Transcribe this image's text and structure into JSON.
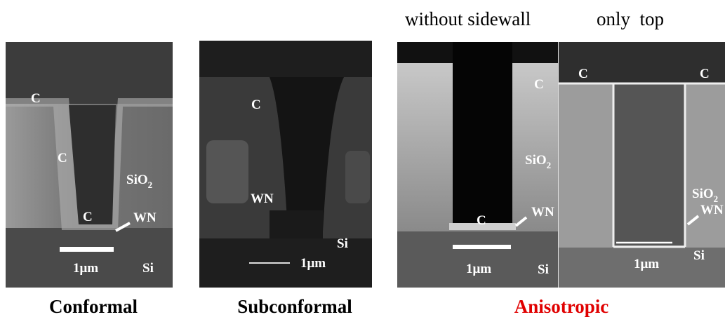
{
  "header": {
    "left_label": "without sidewall",
    "right_label": "only  top"
  },
  "captions": [
    "Conformal",
    "Subconformal",
    "Anisotropic"
  ],
  "images": [
    {
      "labels": [
        {
          "text": "C"
        },
        {
          "text": "C"
        },
        {
          "text": "C"
        },
        {
          "text": "SiO",
          "sub": "2"
        },
        {
          "text": "WN"
        },
        {
          "text": "1μm"
        },
        {
          "text": "Si"
        }
      ]
    },
    {
      "labels": [
        {
          "text": "C"
        },
        {
          "text": "WN"
        },
        {
          "text": "Si"
        },
        {
          "text": "1μm"
        }
      ]
    },
    {
      "labels": [
        {
          "text": "C"
        },
        {
          "text": "C"
        },
        {
          "text": "SiO",
          "sub": "2"
        },
        {
          "text": "WN"
        },
        {
          "text": "1μm"
        },
        {
          "text": "Si"
        }
      ]
    },
    {
      "labels": [
        {
          "text": "C"
        },
        {
          "text": "C"
        },
        {
          "text": "SiO",
          "sub": "2"
        },
        {
          "text": "WN"
        },
        {
          "text": "1μm"
        },
        {
          "text": "Si"
        }
      ]
    }
  ]
}
